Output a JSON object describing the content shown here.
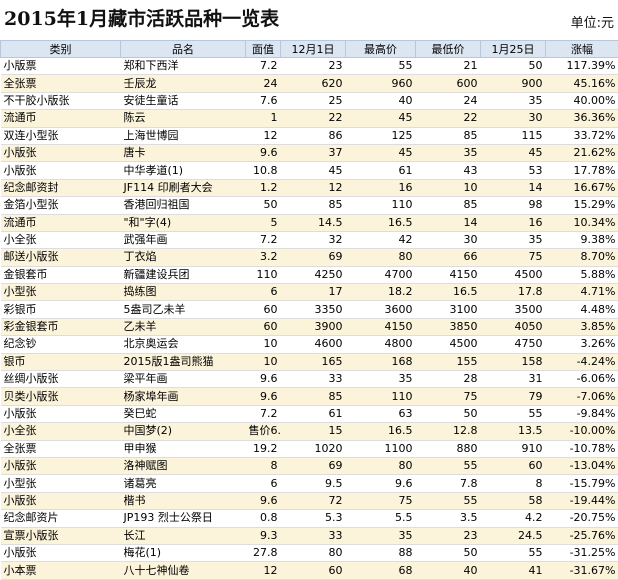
{
  "header": {
    "title": "2015年1月藏市活跃品种一览表",
    "unit": "单位:元"
  },
  "table": {
    "columns": [
      "类别",
      "品名",
      "面值",
      "12月1日",
      "最高价",
      "最低价",
      "1月25日",
      "涨幅"
    ],
    "rows": [
      [
        "小版票",
        "郑和下西洋",
        "7.2",
        "23",
        "55",
        "21",
        "50",
        "117.39%"
      ],
      [
        "全张票",
        "壬辰龙",
        "24",
        "620",
        "960",
        "600",
        "900",
        "45.16%"
      ],
      [
        "不干胶小版张",
        "安徒生童话",
        "7.6",
        "25",
        "40",
        "24",
        "35",
        "40.00%"
      ],
      [
        "流通币",
        "陈云",
        "1",
        "22",
        "45",
        "22",
        "30",
        "36.36%"
      ],
      [
        "双连小型张",
        "上海世博园",
        "12",
        "86",
        "125",
        "85",
        "115",
        "33.72%"
      ],
      [
        "小版张",
        "唐卡",
        "9.6",
        "37",
        "45",
        "35",
        "45",
        "21.62%"
      ],
      [
        "小版张",
        "中华孝道(1)",
        "10.8",
        "45",
        "61",
        "43",
        "53",
        "17.78%"
      ],
      [
        "纪念邮资封",
        "JF114 印刷者大会",
        "1.2",
        "12",
        "16",
        "10",
        "14",
        "16.67%"
      ],
      [
        "金箔小型张",
        "香港回归祖国",
        "50",
        "85",
        "110",
        "85",
        "98",
        "15.29%"
      ],
      [
        "流通币",
        "\"和\"字(4)",
        "5",
        "14.5",
        "16.5",
        "14",
        "16",
        "10.34%"
      ],
      [
        "小全张",
        "武强年画",
        "7.2",
        "32",
        "42",
        "30",
        "35",
        "9.38%"
      ],
      [
        "邮送小版张",
        "丁衣焰",
        "3.2",
        "69",
        "80",
        "66",
        "75",
        "8.70%"
      ],
      [
        "金银套币",
        "新疆建设兵团",
        "110",
        "4250",
        "4700",
        "4150",
        "4500",
        "5.88%"
      ],
      [
        "小型张",
        "捣练图",
        "6",
        "17",
        "18.2",
        "16.5",
        "17.8",
        "4.71%"
      ],
      [
        "彩银币",
        "5盎司乙未羊",
        "60",
        "3350",
        "3600",
        "3100",
        "3500",
        "4.48%"
      ],
      [
        "彩金银套币",
        "乙未羊",
        "60",
        "3900",
        "4150",
        "3850",
        "4050",
        "3.85%"
      ],
      [
        "纪念钞",
        "北京奥运会",
        "10",
        "4600",
        "4800",
        "4500",
        "4750",
        "3.26%"
      ],
      [
        "银币",
        "2015版1盎司熊猫",
        "10",
        "165",
        "168",
        "155",
        "158",
        "-4.24%"
      ],
      [
        "丝绸小版张",
        "梁平年画",
        "9.6",
        "33",
        "35",
        "28",
        "31",
        "-6.06%"
      ],
      [
        "贝类小版张",
        "杨家埠年画",
        "9.6",
        "85",
        "110",
        "75",
        "79",
        "-7.06%"
      ],
      [
        "小版张",
        "癸巳蛇",
        "7.2",
        "61",
        "63",
        "50",
        "55",
        "-9.84%"
      ],
      [
        "小全张",
        "中国梦(2)",
        "售价6.6",
        "15",
        "16.5",
        "12.8",
        "13.5",
        "-10.00%"
      ],
      [
        "全张票",
        "甲申猴",
        "19.2",
        "1020",
        "1100",
        "880",
        "910",
        "-10.78%"
      ],
      [
        "小版张",
        "洛神赋图",
        "8",
        "69",
        "80",
        "55",
        "60",
        "-13.04%"
      ],
      [
        "小型张",
        "诸葛亮",
        "6",
        "9.5",
        "9.6",
        "7.8",
        "8",
        "-15.79%"
      ],
      [
        "小版张",
        "楷书",
        "9.6",
        "72",
        "75",
        "55",
        "58",
        "-19.44%"
      ],
      [
        "纪念邮资片",
        "JP193 烈士公祭日",
        "0.8",
        "5.3",
        "5.5",
        "3.5",
        "4.2",
        "-20.75%"
      ],
      [
        "宣票小版张",
        "长江",
        "9.3",
        "33",
        "35",
        "23",
        "24.5",
        "-25.76%"
      ],
      [
        "小版张",
        "梅花(1)",
        "27.8",
        "80",
        "88",
        "50",
        "55",
        "-31.25%"
      ],
      [
        "小本票",
        "八十七神仙卷",
        "12",
        "60",
        "68",
        "40",
        "41",
        "-31.67%"
      ]
    ]
  }
}
